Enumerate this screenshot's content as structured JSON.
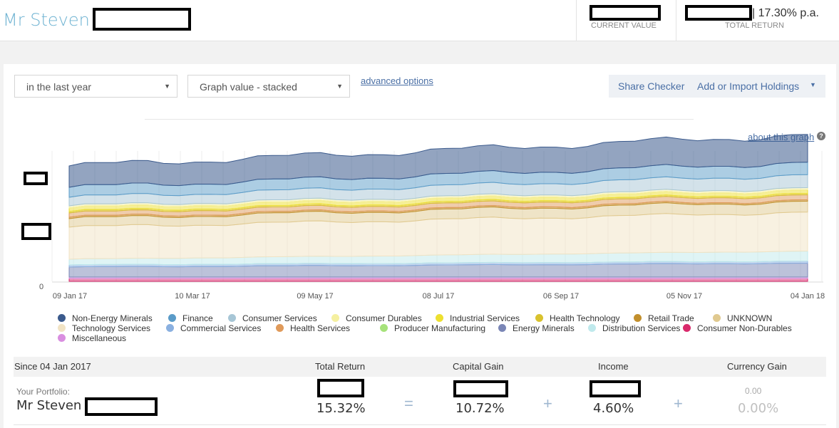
{
  "header": {
    "name": "Mr Steven",
    "current_value_label": "CURRENT VALUE",
    "total_return_value": "| 17.30% p.a.",
    "total_return_label": "TOTAL RETURN"
  },
  "controls": {
    "period": "in the last year",
    "graph_mode": "Graph value - stacked",
    "advanced_options": "advanced options",
    "share_checker": "Share Checker",
    "add_import": "Add or Import Holdings",
    "about_graph": "about this graph",
    "about_icon": "?"
  },
  "chart_data": {
    "type": "area",
    "stacked": true,
    "y_tick_visible": "0",
    "x_ticks": [
      "09 Jan 17",
      "10 Mar 17",
      "09 May 17",
      "08 Jul 17",
      "06 Sep 17",
      "05 Nov 17",
      "04 Jan 18"
    ],
    "grid": "vertical",
    "legend_position": "bottom",
    "series": [
      {
        "name": "Non-Energy Minerals",
        "color": "#3b5a8c"
      },
      {
        "name": "Finance",
        "color": "#5a9bc8"
      },
      {
        "name": "Consumer Services",
        "color": "#a7c6d6"
      },
      {
        "name": "Consumer Durables",
        "color": "#f5f0a0"
      },
      {
        "name": "Industrial Services",
        "color": "#ede030"
      },
      {
        "name": "Health Technology",
        "color": "#d9c22e"
      },
      {
        "name": "Retail Trade",
        "color": "#c28f2c"
      },
      {
        "name": "UNKNOWN",
        "color": "#e0c98f"
      },
      {
        "name": "Technology Services",
        "color": "#f1e3c4"
      },
      {
        "name": "Commercial Services",
        "color": "#8ab0e0"
      },
      {
        "name": "Health Services",
        "color": "#e09a5a"
      },
      {
        "name": "Producer Manufacturing",
        "color": "#a6e27a"
      },
      {
        "name": "Energy Minerals",
        "color": "#7a86b6"
      },
      {
        "name": "Distribution Services",
        "color": "#bfe9ec"
      },
      {
        "name": "Consumer Non-Durables",
        "color": "#d9296b"
      },
      {
        "name": "Miscellaneous",
        "color": "#d98ee0"
      }
    ]
  },
  "summary": {
    "since": "Since 04 Jan 2017",
    "headers": {
      "total_return": "Total Return",
      "capital_gain": "Capital Gain",
      "income": "Income",
      "currency_gain": "Currency Gain"
    },
    "your_portfolio_label": "Your Portfolio:",
    "portfolio_name": "Mr Steven",
    "total_return": "15.32%",
    "capital_gain": "10.72%",
    "income": "4.60%",
    "currency_gain_small": "0.00",
    "currency_gain": "0.00%",
    "eq": "=",
    "plus": "+"
  }
}
